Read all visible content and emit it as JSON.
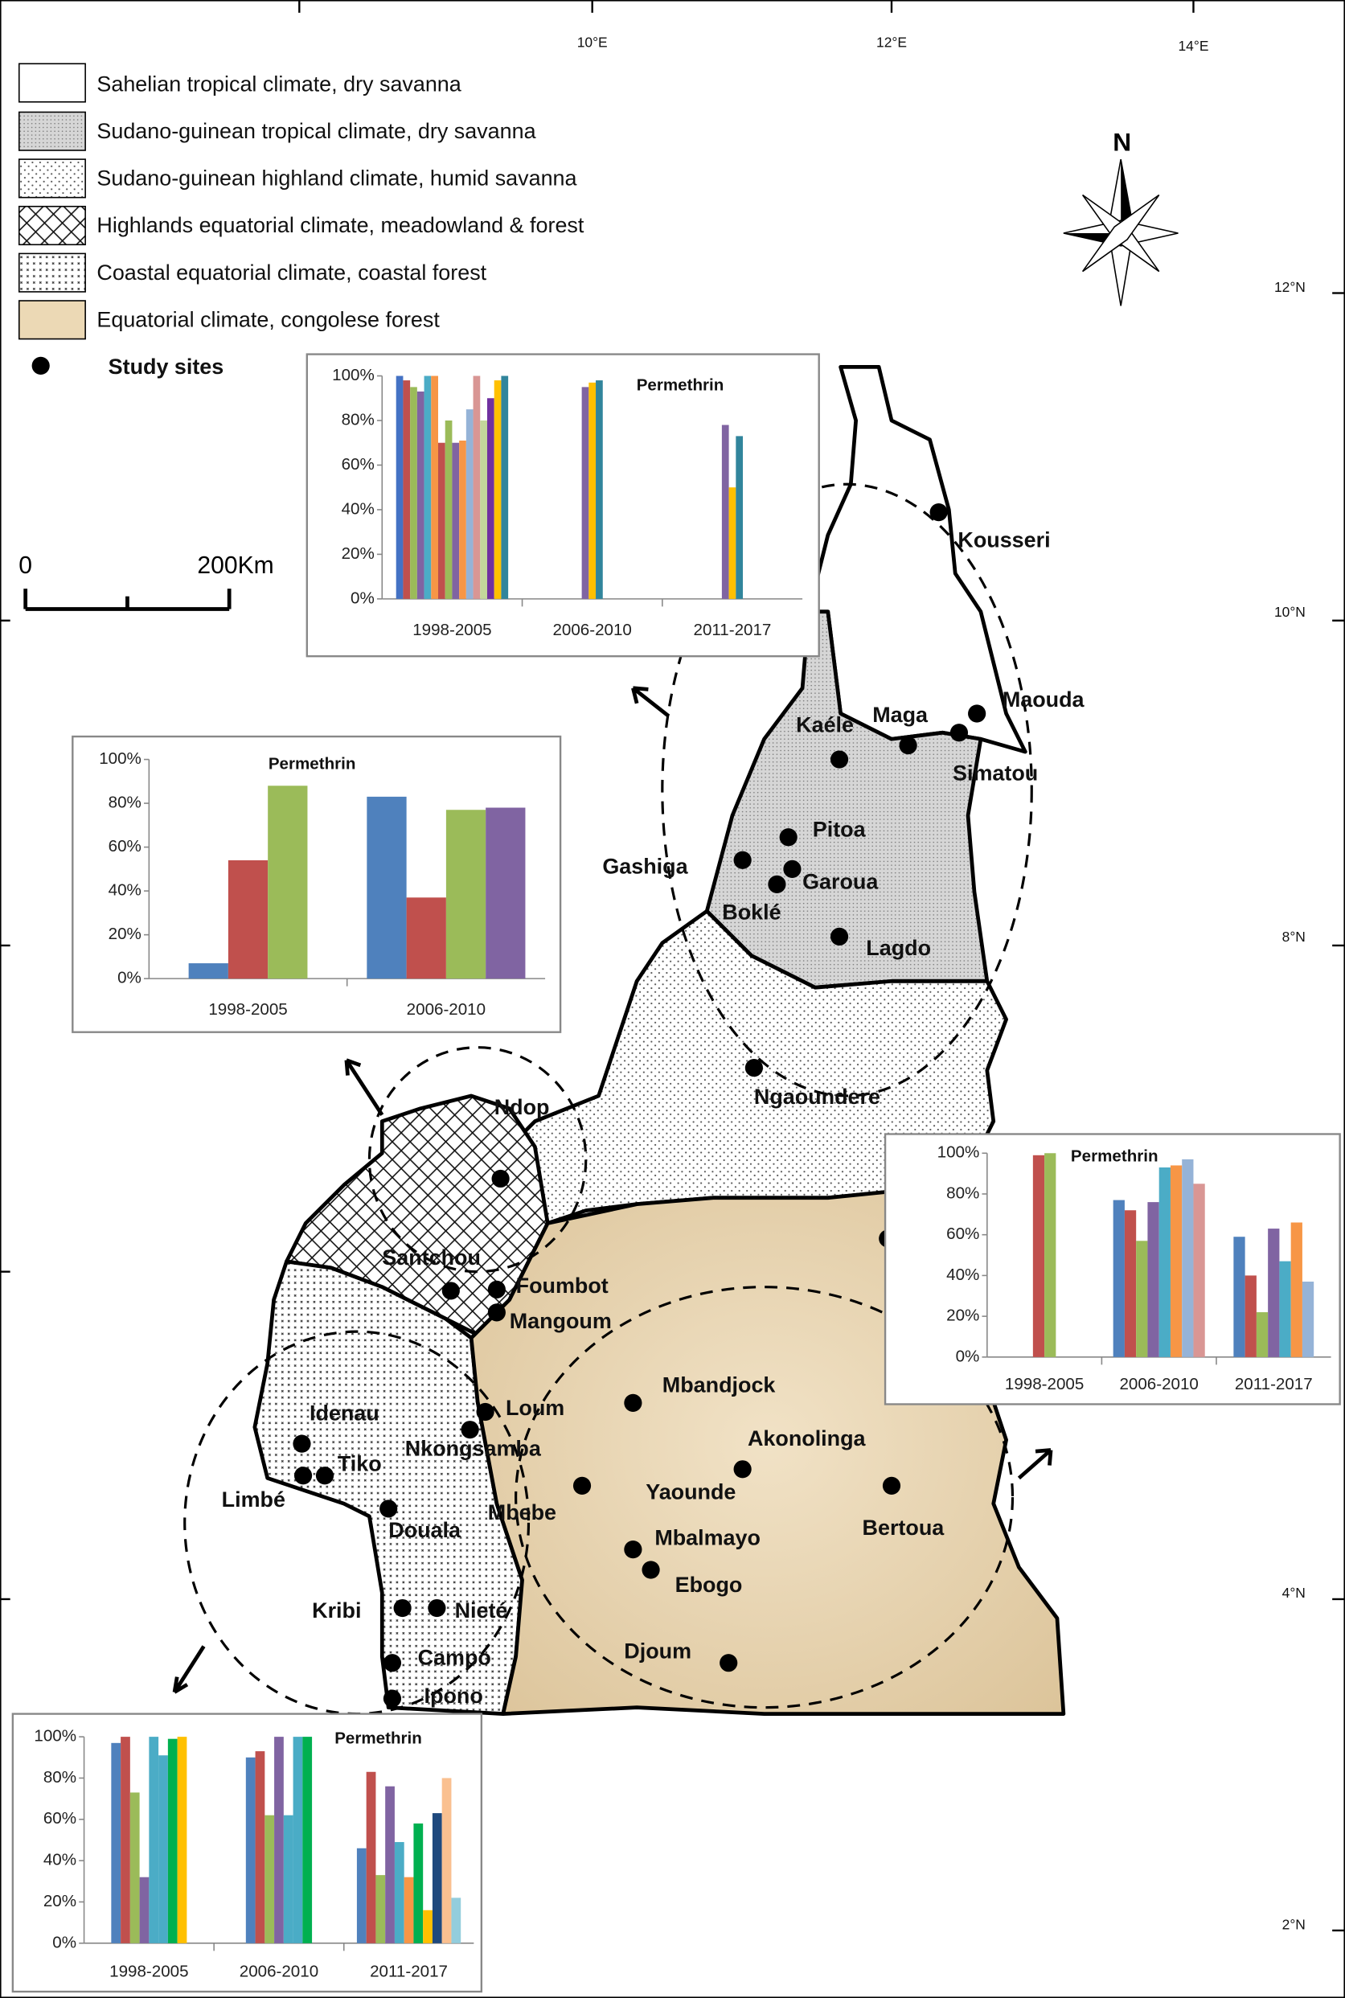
{
  "legend": {
    "items": [
      "Sahelian tropical climate, dry savanna",
      "Sudano-guinean  tropical climate, dry savanna",
      "Sudano-guinean  highland climate, humid savanna",
      "Highlands equatorial climate, meadowland  & forest",
      "Coastal equatorial climate, coastal forest",
      "Equatorial climate, congolese forest"
    ],
    "sites_label": "Study sites"
  },
  "coordinates": {
    "longitudes": [
      "10°E",
      "12°E",
      "14°E"
    ],
    "latitudes": [
      "12°N",
      "10°N",
      "8°N",
      "4°N",
      "2°N"
    ]
  },
  "north": "N",
  "scale": {
    "start": "0",
    "end": "200Km"
  },
  "sites": [
    "Kousseri",
    "Maouda",
    "Maga",
    "Simatou",
    "Kaéle",
    "Pitoa",
    "Gashiga",
    "Garoua",
    "Boklé",
    "Lagdo",
    "Ngaoundere",
    "Ndop",
    "Santchou",
    "Foumbot",
    "Mangoum",
    "Loum",
    "Nkongsamba",
    "Mbandjock",
    "Akonolinga",
    "Yaounde",
    "Mbebe",
    "Bertoua",
    "Idenau",
    "Tiko",
    "Limbé",
    "Douala",
    "Mbalmayo",
    "Ebogo",
    "Kribi",
    "Nieté",
    "Campo",
    "Ipono",
    "Djoum"
  ],
  "chart_data": [
    {
      "type": "bar",
      "title": "Permethrin",
      "categories": [
        "1998-2005",
        "2006-2010",
        "2011-2017"
      ],
      "ylim": [
        0,
        100
      ],
      "yticks": [
        {
          "value": 0,
          "label": "0%"
        },
        {
          "value": 20,
          "label": "20%"
        },
        {
          "value": 40,
          "label": "40%"
        },
        {
          "value": 60,
          "label": "60%"
        },
        {
          "value": 80,
          "label": "80%"
        },
        {
          "value": 100,
          "label": "100%"
        }
      ],
      "series": [
        {
          "color": "#4472c4",
          "values": [
            100,
            null,
            null
          ]
        },
        {
          "color": "#c0504d",
          "values": [
            98,
            null,
            null
          ]
        },
        {
          "color": "#9bbb59",
          "values": [
            95,
            null,
            null
          ]
        },
        {
          "color": "#8064a2",
          "values": [
            93,
            95,
            78
          ]
        },
        {
          "color": "#4bacc6",
          "values": [
            100,
            null,
            null
          ]
        },
        {
          "color": "#f79646",
          "values": [
            100,
            null,
            null
          ]
        },
        {
          "color": "#c0504d",
          "values": [
            70,
            null,
            null
          ]
        },
        {
          "color": "#9bbb59",
          "values": [
            80,
            null,
            null
          ]
        },
        {
          "color": "#8064a2",
          "values": [
            70,
            null,
            null
          ]
        },
        {
          "color": "#f79646",
          "values": [
            71,
            null,
            null
          ]
        },
        {
          "color": "#95b3d7",
          "values": [
            85,
            null,
            null
          ]
        },
        {
          "color": "#d99694",
          "values": [
            100,
            null,
            null
          ]
        },
        {
          "color": "#c3d69b",
          "values": [
            80,
            null,
            null
          ]
        },
        {
          "color": "#7030a0",
          "values": [
            90,
            null,
            null
          ]
        },
        {
          "color": "#ffc000",
          "values": [
            98,
            97,
            50
          ]
        },
        {
          "color": "#31859c",
          "values": [
            100,
            98,
            73
          ]
        }
      ]
    },
    {
      "type": "bar",
      "title": "Permethrin",
      "categories": [
        "1998-2005",
        "2006-2010"
      ],
      "ylim": [
        0,
        100
      ],
      "yticks": [
        {
          "value": 0,
          "label": "0%"
        },
        {
          "value": 20,
          "label": "20%"
        },
        {
          "value": 40,
          "label": "40%"
        },
        {
          "value": 60,
          "label": "60%"
        },
        {
          "value": 80,
          "label": "80%"
        },
        {
          "value": 100,
          "label": "100%"
        }
      ],
      "series": [
        {
          "color": "#4f81bd",
          "values": [
            7,
            83
          ]
        },
        {
          "color": "#c0504d",
          "values": [
            54,
            37
          ]
        },
        {
          "color": "#9bbb59",
          "values": [
            88,
            77
          ]
        },
        {
          "color": "#8064a2",
          "values": [
            null,
            78
          ]
        }
      ]
    },
    {
      "type": "bar",
      "title": "Permethrin",
      "categories": [
        "1998-2005",
        "2006-2010",
        "2011-2017"
      ],
      "ylim": [
        0,
        100
      ],
      "yticks": [
        {
          "value": 0,
          "label": "0%"
        },
        {
          "value": 20,
          "label": "20%"
        },
        {
          "value": 40,
          "label": "40%"
        },
        {
          "value": 60,
          "label": "60%"
        },
        {
          "value": 80,
          "label": "80%"
        },
        {
          "value": 100,
          "label": "100%"
        }
      ],
      "series": [
        {
          "color": "#4f81bd",
          "values": [
            null,
            77,
            59
          ]
        },
        {
          "color": "#c0504d",
          "values": [
            99,
            72,
            40
          ]
        },
        {
          "color": "#9bbb59",
          "values": [
            100,
            57,
            22
          ]
        },
        {
          "color": "#8064a2",
          "values": [
            null,
            76,
            63
          ]
        },
        {
          "color": "#4bacc6",
          "values": [
            null,
            93,
            47
          ]
        },
        {
          "color": "#f79646",
          "values": [
            null,
            94,
            66
          ]
        },
        {
          "color": "#95b3d7",
          "values": [
            null,
            97,
            37
          ]
        },
        {
          "color": "#d99694",
          "values": [
            null,
            85,
            null
          ]
        }
      ]
    },
    {
      "type": "bar",
      "title": "Permethrin",
      "categories": [
        "1998-2005",
        "2006-2010",
        "2011-2017"
      ],
      "ylim": [
        0,
        100
      ],
      "yticks": [
        {
          "value": 0,
          "label": "0%"
        },
        {
          "value": 20,
          "label": "20%"
        },
        {
          "value": 40,
          "label": "40%"
        },
        {
          "value": 60,
          "label": "60%"
        },
        {
          "value": 80,
          "label": "80%"
        },
        {
          "value": 100,
          "label": "100%"
        }
      ],
      "series": [
        {
          "color": "#4f81bd",
          "values": [
            97,
            90,
            46
          ]
        },
        {
          "color": "#c0504d",
          "values": [
            100,
            93,
            83
          ]
        },
        {
          "color": "#9bbb59",
          "values": [
            73,
            62,
            33
          ]
        },
        {
          "color": "#8064a2",
          "values": [
            32,
            100,
            76
          ]
        },
        {
          "color": "#4bacc6",
          "values": [
            100,
            62,
            49
          ]
        },
        {
          "color": "#f79646",
          "values": [
            null,
            null,
            32
          ]
        },
        {
          "color": "#4aacc6",
          "values": [
            91,
            100,
            null
          ]
        },
        {
          "color": "#00b050",
          "values": [
            99,
            100,
            58
          ]
        },
        {
          "color": "#ffc000",
          "values": [
            100,
            null,
            16
          ]
        },
        {
          "color": "#1f497d",
          "values": [
            null,
            null,
            63
          ]
        },
        {
          "color": "#fac090",
          "values": [
            null,
            null,
            80
          ]
        },
        {
          "color": "#93cddd",
          "values": [
            null,
            null,
            22
          ]
        }
      ]
    }
  ]
}
